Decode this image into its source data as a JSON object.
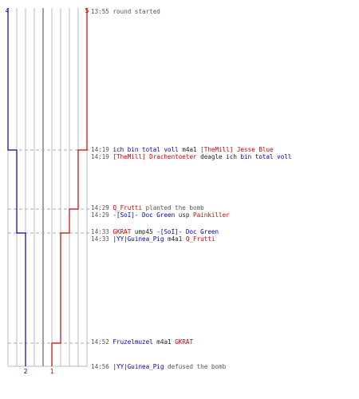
{
  "colors": {
    "blue": "#0000b3",
    "red": "#cc0000",
    "gray_text": "#555555",
    "grid": "#bbbbbb",
    "center_line": "#888888",
    "dash": "#aaaaaa",
    "plain": "#222222"
  },
  "team_counts": {
    "blue_start": "4",
    "red_start": "5",
    "blue_end": "2",
    "red_end": "1"
  },
  "timeline": {
    "blue_steps": [
      {
        "time": "13:55",
        "alive": 4
      },
      {
        "time": "14:19",
        "alive": 3
      },
      {
        "time": "14:33",
        "alive": 2
      }
    ],
    "red_steps": [
      {
        "time": "13:55",
        "alive": 5
      },
      {
        "time": "14:19",
        "alive": 4
      },
      {
        "time": "14:29",
        "alive": 3
      },
      {
        "time": "14:33",
        "alive": 2
      },
      {
        "time": "14:52",
        "alive": 1
      }
    ]
  },
  "events": [
    {
      "time": "13:55",
      "parts": [
        {
          "t": "round started",
          "c": "gray"
        }
      ]
    },
    {
      "time": "14:19",
      "parts": [
        {
          "t": "ich bin total voll",
          "c": "blue"
        },
        {
          "t": " m4a1 ",
          "c": "plain"
        },
        {
          "t": "[TheMill] Jesse Blue",
          "c": "red"
        }
      ]
    },
    {
      "time": "14:19",
      "parts": [
        {
          "t": "[TheMill] Drachentoeter",
          "c": "red"
        },
        {
          "t": " deagle ",
          "c": "plain"
        },
        {
          "t": "ich bin total voll",
          "c": "blue"
        }
      ]
    },
    {
      "time": "14:29",
      "parts": [
        {
          "t": "Q_Frutti",
          "c": "red"
        },
        {
          "t": " planted the bomb",
          "c": "gray"
        }
      ]
    },
    {
      "time": "14:29",
      "parts": [
        {
          "t": "-[SoI]- Doc Green",
          "c": "blue"
        },
        {
          "t": " usp ",
          "c": "plain"
        },
        {
          "t": "Painkiller",
          "c": "red"
        }
      ]
    },
    {
      "time": "14:33",
      "parts": [
        {
          "t": "GKRAT",
          "c": "red"
        },
        {
          "t": " ump45 ",
          "c": "plain"
        },
        {
          "t": "-[SoI]- Doc Green",
          "c": "blue"
        }
      ]
    },
    {
      "time": "14:33",
      "parts": [
        {
          "t": "|YY|Guinea_Pig",
          "c": "blue"
        },
        {
          "t": " m4a1 ",
          "c": "plain"
        },
        {
          "t": "Q_Frutti",
          "c": "red"
        }
      ]
    },
    {
      "time": "14:52",
      "parts": [
        {
          "t": "Fruzelmuzel",
          "c": "blue"
        },
        {
          "t": " m4a1 ",
          "c": "plain"
        },
        {
          "t": "GKRAT",
          "c": "red"
        }
      ]
    },
    {
      "time": "14:56",
      "parts": [
        {
          "t": "|YY|Guinea_Pig",
          "c": "blue"
        },
        {
          "t": " defused the bomb",
          "c": "gray"
        }
      ]
    }
  ]
}
